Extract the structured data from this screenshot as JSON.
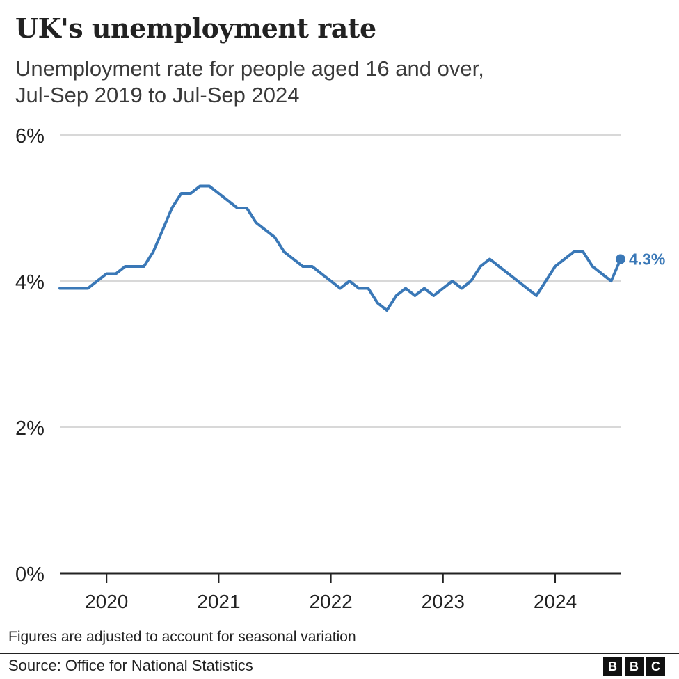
{
  "title": "UK's unemployment rate",
  "subtitle": [
    "Unemployment rate for people aged 16 and over,",
    "Jul-Sep 2019 to Jul-Sep 2024"
  ],
  "note": "Figures are adjusted to account for seasonal variation",
  "source": "Source: Office for National Statistics",
  "logo": [
    "B",
    "B",
    "C"
  ],
  "colors": {
    "line": "#3a78b7",
    "grid": "#cccccc",
    "axis": "#222222",
    "text": "#222222"
  },
  "chart_data": {
    "type": "line",
    "title": "UK's unemployment rate",
    "subtitle": "Unemployment rate for people aged 16 and over, Jul-Sep 2019 to Jul-Sep 2024",
    "xlabel": "",
    "ylabel": "",
    "ylim": [
      0,
      6
    ],
    "yticks": [
      0,
      2,
      4,
      6
    ],
    "ytick_labels": [
      "0%",
      "2%",
      "4%",
      "6%"
    ],
    "xticks": [
      2020,
      2021,
      2022,
      2023,
      2024
    ],
    "xtick_labels": [
      "2020",
      "2021",
      "2022",
      "2023",
      "2024"
    ],
    "xlim": [
      2019.583,
      2024.583
    ],
    "grid": true,
    "series": [
      {
        "name": "Unemployment rate",
        "x_start": 2019.583,
        "x_step": 0.08333,
        "values": [
          3.9,
          3.9,
          3.9,
          3.9,
          4.0,
          4.1,
          4.1,
          4.2,
          4.2,
          4.2,
          4.4,
          4.7,
          5.0,
          5.2,
          5.2,
          5.3,
          5.3,
          5.2,
          5.1,
          5.0,
          5.0,
          4.8,
          4.7,
          4.6,
          4.4,
          4.3,
          4.2,
          4.2,
          4.1,
          4.0,
          3.9,
          4.0,
          3.9,
          3.9,
          3.7,
          3.6,
          3.8,
          3.9,
          3.8,
          3.9,
          3.8,
          3.9,
          4.0,
          3.9,
          4.0,
          4.2,
          4.3,
          4.2,
          4.1,
          4.0,
          3.9,
          3.8,
          4.0,
          4.2,
          4.3,
          4.4,
          4.4,
          4.2,
          4.1,
          4.0,
          4.3
        ]
      }
    ],
    "end_label": "4.3%"
  }
}
